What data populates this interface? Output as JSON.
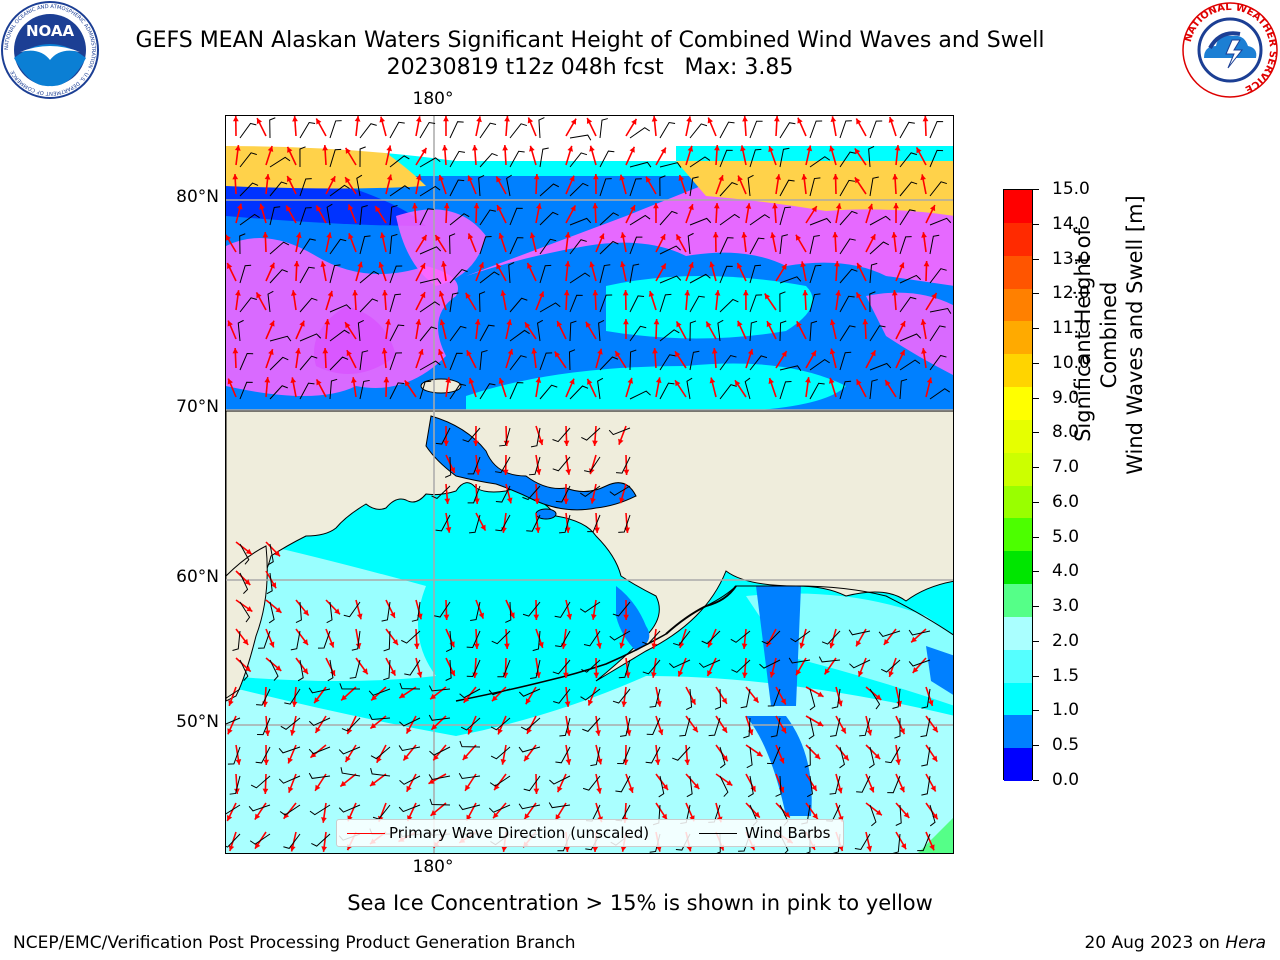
{
  "header": {
    "title": "GEFS MEAN Alaskan Waters Significant Height of Combined Wind Waves and Swell",
    "subtitle": "20230819 t12z 048h fcst   Max: 3.85"
  },
  "logos": {
    "noaa_text": "NOAA",
    "noaa_ring_text": "NATIONAL OCEANIC AND ATMOSPHERIC ADMINISTRATION · U.S. DEPARTMENT OF COMMERCE",
    "nws_ring_text": "NATIONAL WEATHER SERVICE"
  },
  "map": {
    "lon_label_top": "180°",
    "lon_label_bottom": "180°",
    "lat_labels": [
      "80°N",
      "70°N",
      "60°N",
      "50°N"
    ],
    "colors": {
      "land": "#efeddc",
      "ocean_low": "#00ffff",
      "ocean_mid": "#aaffff",
      "ocean_blue": "#0080ff",
      "ocean_deep": "#0000ff",
      "ice_pink": "#ff66ff",
      "ice_yellow": "#ffd24a",
      "wave_arrow": "#ff0000",
      "wind_barb": "#000000"
    },
    "legend": {
      "wave_label": "Primary Wave Direction (unscaled)",
      "wind_label": "Wind Barbs"
    }
  },
  "colorbar": {
    "label_line1": "Significant Height of Combined",
    "label_line2": "Wind Waves and Swell [m]",
    "ticks": [
      "15.0",
      "14.0",
      "13.0",
      "12.0",
      "11.0",
      "10.0",
      "9.0",
      "8.0",
      "7.0",
      "6.0",
      "5.0",
      "4.0",
      "3.0",
      "2.0",
      "1.5",
      "1.0",
      "0.5",
      "0.0"
    ],
    "colors_top_to_bottom": [
      "#ff0000",
      "#ff2a00",
      "#ff5500",
      "#ff8000",
      "#ffaa00",
      "#ffd400",
      "#ffff00",
      "#e6ff00",
      "#ccff00",
      "#99ff00",
      "#4cff00",
      "#00e600",
      "#55ff88",
      "#aaffff",
      "#55ffff",
      "#00ffff",
      "#0080ff",
      "#0000ff"
    ]
  },
  "notes": {
    "sea_ice": "Sea Ice Concentration > 15% is shown in pink to yellow"
  },
  "footer": {
    "left": "NCEP/EMC/Verification Post Processing Product Generation Branch",
    "right_date": "20 Aug 2023 on ",
    "right_host": "Hera"
  }
}
